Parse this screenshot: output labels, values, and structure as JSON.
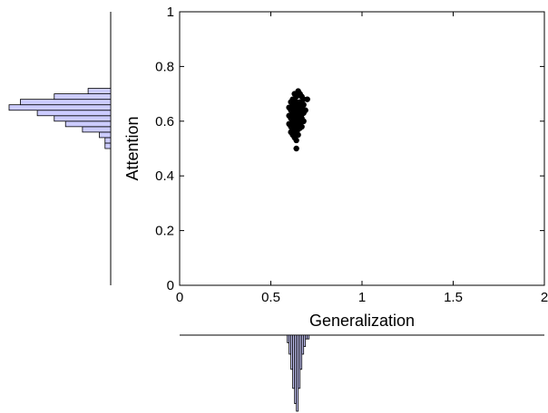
{
  "chart_data": {
    "type": "scatter",
    "title": "",
    "xlabel": "Generalization",
    "ylabel": "Attention",
    "xlim": [
      0,
      2
    ],
    "ylim": [
      0,
      1
    ],
    "xticks": [
      0,
      0.5,
      1,
      1.5,
      2
    ],
    "xtick_labels": [
      "0",
      "0.5",
      "1",
      "1.5",
      "2"
    ],
    "yticks": [
      0,
      0.2,
      0.4,
      0.6,
      0.8,
      1
    ],
    "ytick_labels": [
      "0",
      "0.2",
      "0.4",
      "0.6",
      "0.8",
      "1"
    ],
    "grid": false,
    "marker_color": "#000000",
    "histogram_fill": "#ccccff",
    "histogram_edge": "#000000",
    "points": [
      [
        0.62,
        0.68
      ],
      [
        0.64,
        0.69
      ],
      [
        0.66,
        0.7
      ],
      [
        0.65,
        0.71
      ],
      [
        0.63,
        0.7
      ],
      [
        0.67,
        0.69
      ],
      [
        0.68,
        0.68
      ],
      [
        0.7,
        0.68
      ],
      [
        0.61,
        0.67
      ],
      [
        0.64,
        0.67
      ],
      [
        0.66,
        0.67
      ],
      [
        0.62,
        0.66
      ],
      [
        0.65,
        0.66
      ],
      [
        0.68,
        0.66
      ],
      [
        0.6,
        0.65
      ],
      [
        0.63,
        0.65
      ],
      [
        0.67,
        0.65
      ],
      [
        0.61,
        0.64
      ],
      [
        0.64,
        0.64
      ],
      [
        0.66,
        0.64
      ],
      [
        0.69,
        0.64
      ],
      [
        0.62,
        0.63
      ],
      [
        0.65,
        0.63
      ],
      [
        0.68,
        0.63
      ],
      [
        0.6,
        0.62
      ],
      [
        0.63,
        0.62
      ],
      [
        0.66,
        0.62
      ],
      [
        0.61,
        0.61
      ],
      [
        0.64,
        0.61
      ],
      [
        0.67,
        0.61
      ],
      [
        0.62,
        0.6
      ],
      [
        0.65,
        0.6
      ],
      [
        0.68,
        0.6
      ],
      [
        0.6,
        0.59
      ],
      [
        0.63,
        0.59
      ],
      [
        0.66,
        0.59
      ],
      [
        0.61,
        0.58
      ],
      [
        0.64,
        0.58
      ],
      [
        0.67,
        0.58
      ],
      [
        0.62,
        0.57
      ],
      [
        0.65,
        0.57
      ],
      [
        0.61,
        0.56
      ],
      [
        0.64,
        0.56
      ],
      [
        0.62,
        0.55
      ],
      [
        0.65,
        0.55
      ],
      [
        0.63,
        0.54
      ],
      [
        0.64,
        0.53
      ],
      [
        0.64,
        0.5
      ],
      [
        0.66,
        0.695
      ],
      [
        0.63,
        0.675
      ],
      [
        0.65,
        0.655
      ],
      [
        0.62,
        0.645
      ],
      [
        0.67,
        0.625
      ],
      [
        0.64,
        0.605
      ],
      [
        0.66,
        0.575
      ]
    ],
    "y_histogram": {
      "bins": [
        0.5,
        0.52,
        0.54,
        0.56,
        0.58,
        0.6,
        0.62,
        0.64,
        0.66,
        0.68,
        0.7
      ],
      "counts": [
        1,
        1,
        2,
        5,
        8,
        10,
        13,
        18,
        16,
        10,
        4
      ]
    },
    "x_histogram": {
      "bins": [
        0.59,
        0.6,
        0.61,
        0.62,
        0.63,
        0.64,
        0.65,
        0.66,
        0.67,
        0.68,
        0.69,
        0.7
      ],
      "counts": [
        2,
        5,
        9,
        14,
        18,
        20,
        14,
        9,
        5,
        3,
        1,
        1
      ]
    }
  }
}
